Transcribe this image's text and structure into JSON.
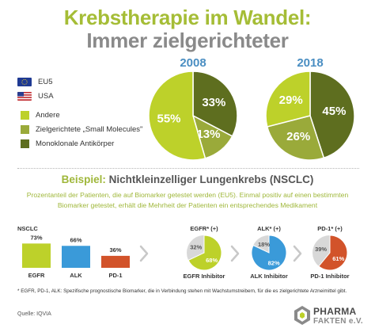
{
  "header": {
    "title": "Krebstherapie im Wandel:",
    "subtitle": "Immer zielgerichteter"
  },
  "legend": {
    "eu": "EU5",
    "usa": "USA",
    "andere": "Andere",
    "small": "Zielgerichtete „Small Molecules\"",
    "mono": "Monoklonale Antikörper"
  },
  "colors": {
    "andere": "#bdd12a",
    "small": "#9aaa3a",
    "mono": "#5e6e1f",
    "blue": "#3a9ad9",
    "red": "#d2532a",
    "grey": "#d8d8d8",
    "title_green": "#a5bd36",
    "title_grey": "#8a8a8a"
  },
  "bottom": {
    "bsp_label": "Beispiel:",
    "bsp_text": "Nichtkleinzelliger Lungenkrebs (NSCLC)",
    "desc": "Prozentanteil der Patienten, die auf Biomarker getestet werden (EU5). Einmal positiv auf einen bestimmten Biomarker getestet, erhält die Mehrheit der Patienten ein entsprechendes Medikament",
    "footnote": "* EGFR, PD-1, ALK: Spezifische prognostische Biomarker, die in Verbindung stehen mit Wachstumstreibern, für die es zielgerichtete Arzneimittel gibt.",
    "source": "Quelle: IQVIA",
    "logo_line1": "PHARMA",
    "logo_line2": "FAKTEN e.V."
  },
  "chart_data": [
    {
      "type": "pie",
      "title": "2008",
      "slices": [
        {
          "label": "Andere",
          "value": 55,
          "text": "55%"
        },
        {
          "label": "Monoklonale Antikörper",
          "value": 33,
          "text": "33%"
        },
        {
          "label": "Zielgerichtete „Small Molecules\"",
          "value": 13,
          "text": "13%"
        }
      ]
    },
    {
      "type": "pie",
      "title": "2018",
      "slices": [
        {
          "label": "Monoklonale Antikörper",
          "value": 45,
          "text": "45%"
        },
        {
          "label": "Zielgerichtete „Small Molecules\"",
          "value": 26,
          "text": "26%"
        },
        {
          "label": "Andere",
          "value": 29,
          "text": "29%"
        }
      ]
    },
    {
      "type": "bar",
      "title": "NSCLC",
      "categories": [
        "EGFR",
        "ALK",
        "PD-1"
      ],
      "values": [
        73,
        66,
        36
      ],
      "labels": [
        "73%",
        "66%",
        "36%"
      ],
      "ylim": [
        0,
        100
      ]
    },
    {
      "type": "pie",
      "title": "EGFR* (+)",
      "caption": "EGFR Inhibitor",
      "slices": [
        {
          "label": "Inhibitor",
          "value": 68,
          "text": "68%"
        },
        {
          "label": "Andere",
          "value": 32,
          "text": "32%"
        }
      ]
    },
    {
      "type": "pie",
      "title": "ALK* (+)",
      "caption": "ALK Inhibitor",
      "slices": [
        {
          "label": "Inhibitor",
          "value": 82,
          "text": "82%"
        },
        {
          "label": "Andere",
          "value": 18,
          "text": "18%"
        }
      ]
    },
    {
      "type": "pie",
      "title": "PD-1* (+)",
      "caption": "PD-1 Inhibitor",
      "slices": [
        {
          "label": "Inhibitor",
          "value": 61,
          "text": "61%"
        },
        {
          "label": "Andere",
          "value": 39,
          "text": "39%"
        }
      ]
    }
  ]
}
